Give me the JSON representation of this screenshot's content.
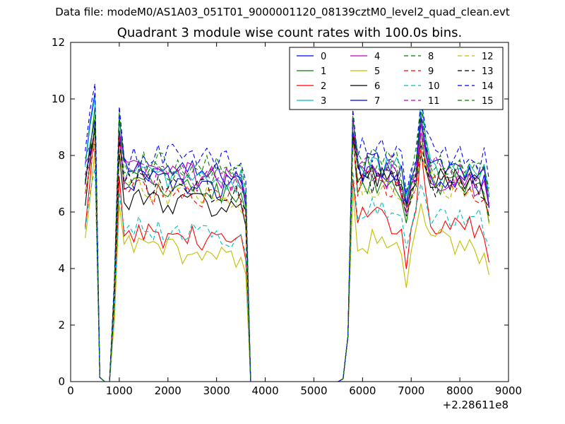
{
  "suptitle": "Data file: modeM0/AS1A03_051T01_9000001120_08139cztM0_level2_quad_clean.evt",
  "chart_data": {
    "type": "line",
    "title": "Quadrant 3 module wise count rates with 100.0s bins.",
    "xlabel": "",
    "ylabel": "",
    "x_offset_label": "+2.28611e8",
    "xlim": [
      0,
      9000
    ],
    "ylim": [
      0,
      12
    ],
    "xticks": [
      "0",
      "1000",
      "2000",
      "3000",
      "4000",
      "5000",
      "6000",
      "7000",
      "8000",
      "9000"
    ],
    "yticks": [
      "0",
      "2",
      "4",
      "6",
      "8",
      "10",
      "12"
    ],
    "grid": false,
    "legend": {
      "placement": "top-right",
      "columns": 4
    },
    "series": [
      {
        "name": "0",
        "color": "#0000ff",
        "dash": "solid",
        "seg1_level": 7.6,
        "seg1_peak": 10.2,
        "seg2_level": 7.4,
        "seg2_peak": 9.4
      },
      {
        "name": "1",
        "color": "#008000",
        "dash": "solid",
        "seg1_level": 7.0,
        "seg1_peak": 9.6,
        "seg2_level": 7.0,
        "seg2_peak": 8.8
      },
      {
        "name": "2",
        "color": "#ff0000",
        "dash": "solid",
        "seg1_level": 5.3,
        "seg1_peak": 8.9,
        "seg2_level": 5.7,
        "seg2_peak": 8.2
      },
      {
        "name": "3",
        "color": "#00bfbf",
        "dash": "solid",
        "seg1_level": 7.4,
        "seg1_peak": 10.3,
        "seg2_level": 7.6,
        "seg2_peak": 10.1
      },
      {
        "name": "4",
        "color": "#bf00bf",
        "dash": "solid",
        "seg1_level": 7.5,
        "seg1_peak": 9.0,
        "seg2_level": 7.3,
        "seg2_peak": 9.1
      },
      {
        "name": "5",
        "color": "#bfbf00",
        "dash": "solid",
        "seg1_level": 4.8,
        "seg1_peak": 8.2,
        "seg2_level": 5.0,
        "seg2_peak": 6.3
      },
      {
        "name": "6",
        "color": "#000000",
        "dash": "solid",
        "seg1_level": 6.5,
        "seg1_peak": 8.9,
        "seg2_level": 7.2,
        "seg2_peak": 8.0
      },
      {
        "name": "7",
        "color": "#0000cc",
        "dash": "solid",
        "seg1_level": 7.2,
        "seg1_peak": 9.0,
        "seg2_level": 7.6,
        "seg2_peak": 9.3
      },
      {
        "name": "8",
        "color": "#008000",
        "dash": "dashed",
        "seg1_level": 7.5,
        "seg1_peak": 9.1,
        "seg2_level": 7.8,
        "seg2_peak": 9.8
      },
      {
        "name": "9",
        "color": "#ff0000",
        "dash": "dashed",
        "seg1_level": 6.8,
        "seg1_peak": 8.5,
        "seg2_level": 7.0,
        "seg2_peak": 8.5
      },
      {
        "name": "10",
        "color": "#00bfbf",
        "dash": "dashed",
        "seg1_level": 5.5,
        "seg1_peak": 7.5,
        "seg2_level": 6.0,
        "seg2_peak": 7.0
      },
      {
        "name": "11",
        "color": "#bf00bf",
        "dash": "dashed",
        "seg1_level": 7.4,
        "seg1_peak": 8.4,
        "seg2_level": 7.6,
        "seg2_peak": 8.8
      },
      {
        "name": "12",
        "color": "#bfbf00",
        "dash": "dashed",
        "seg1_level": 6.8,
        "seg1_peak": 8.3,
        "seg2_level": 7.0,
        "seg2_peak": 8.1
      },
      {
        "name": "13",
        "color": "#000000",
        "dash": "dashed",
        "seg1_level": 7.0,
        "seg1_peak": 9.0,
        "seg2_level": 7.1,
        "seg2_peak": 8.4
      },
      {
        "name": "14",
        "color": "#0000ff",
        "dash": "dashed",
        "seg1_level": 8.1,
        "seg1_peak": 10.6,
        "seg2_level": 8.2,
        "seg2_peak": 10.0
      },
      {
        "name": "15",
        "color": "#008000",
        "dash": "dashed",
        "seg1_level": 7.8,
        "seg1_peak": 9.3,
        "seg2_level": 7.7,
        "seg2_peak": 9.6
      }
    ],
    "segments": [
      {
        "x_start": 300,
        "x_end": 3600,
        "peak_x": 500,
        "dip_x": [
          600,
          800
        ],
        "spike_x": 1000
      },
      {
        "x_start": 5600,
        "x_end": 8600,
        "peak_x": 7200
      }
    ]
  }
}
